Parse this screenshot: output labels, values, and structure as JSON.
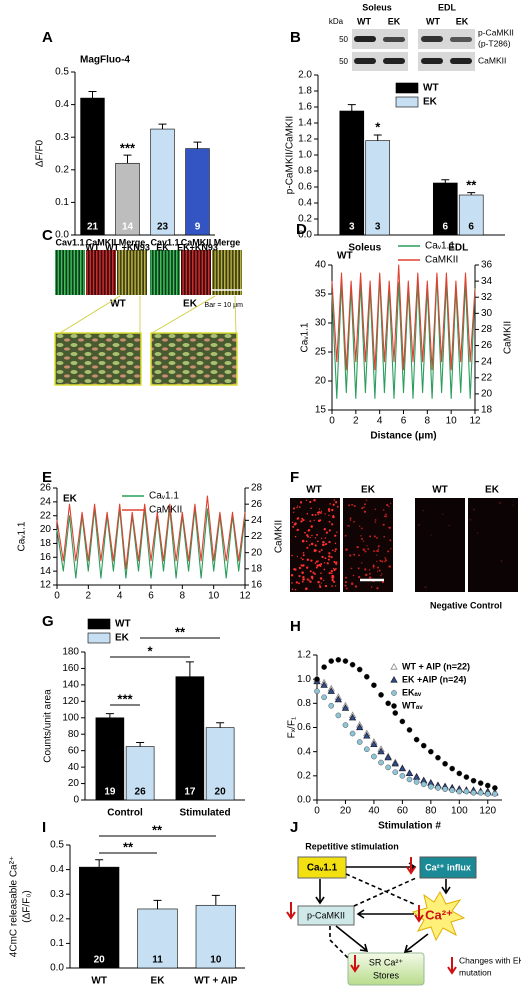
{
  "chart_data": [
    {
      "type": "bar",
      "panel": "A",
      "title": "MagFluo-4",
      "ylabel": "ΔF/F0",
      "categories": [
        "WT",
        "WT +KN93",
        "EK",
        "EK+KN93"
      ],
      "values": [
        0.42,
        0.22,
        0.325,
        0.265
      ],
      "errors": [
        0.02,
        0.025,
        0.015,
        0.02
      ],
      "n": [
        21,
        14,
        23,
        9
      ],
      "colors": [
        "#000000",
        "#bdbdbd",
        "#c6dff2",
        "#3355c4"
      ],
      "ylim": [
        0,
        0.5
      ],
      "yticks": [
        {
          "value": 0,
          "label": "0.0"
        },
        0.1,
        0.2,
        0.3,
        0.4,
        0.5
      ],
      "annotations": [
        "***"
      ]
    },
    {
      "type": "bar",
      "panel": "B",
      "ylabel": "p-CaMKII/CaMKII",
      "categories": [
        "Soleus",
        "EDL"
      ],
      "series": [
        {
          "name": "WT",
          "color": "#000000",
          "values": [
            1.55,
            0.65
          ],
          "errors": [
            0.08,
            0.04
          ],
          "n": [
            3,
            6
          ]
        },
        {
          "name": "EK",
          "color": "#c6dff2",
          "values": [
            1.18,
            0.5
          ],
          "errors": [
            0.07,
            0.03
          ],
          "n": [
            3,
            6
          ]
        }
      ],
      "ylim": [
        0,
        2
      ],
      "yticks": [
        {
          "value": 0,
          "label": "0.0"
        },
        0.2,
        0.4,
        0.6,
        0.8,
        {
          "value": 1,
          "label": "1.0"
        },
        1.2,
        1.4,
        1.6,
        1.8,
        {
          "value": 2,
          "label": "2.0"
        }
      ],
      "annotations": [
        "*",
        "**"
      ]
    },
    {
      "type": "line",
      "panel": "D",
      "label": "WT",
      "xlabel": "Distance (μm)",
      "ylabel": "Caᵥ1.1",
      "y2label": "CaMKII",
      "x": [
        0,
        0.4,
        0.8,
        1.2,
        1.6,
        2,
        2.4,
        2.8,
        3.2,
        3.6,
        4,
        4.4,
        4.8,
        5.2,
        5.6,
        6,
        6.4,
        6.8,
        7.2,
        7.6,
        8,
        8.4,
        8.8,
        9.2,
        9.6,
        10,
        10.4,
        10.8,
        11.2,
        11.6,
        12
      ],
      "series": [
        {
          "name": "Caᵥ1.1",
          "color": "#2a9d5c",
          "values": [
            35,
            17,
            37,
            18,
            36,
            17,
            37,
            18,
            36,
            17,
            38,
            18,
            36,
            17,
            37,
            18,
            36,
            17,
            37,
            18,
            36,
            17,
            38,
            18,
            37,
            17,
            36,
            18,
            37,
            17,
            36
          ]
        },
        {
          "name": "CaMKII",
          "color": "#e04030",
          "axis": "y2",
          "values": [
            34,
            24,
            35,
            23,
            34,
            24,
            35,
            24,
            34,
            23,
            35,
            24,
            34,
            24,
            36,
            23,
            34,
            24,
            35,
            24,
            34,
            23,
            35,
            24,
            35,
            23,
            34,
            24,
            35,
            24,
            33
          ]
        }
      ],
      "xlim": [
        0,
        12
      ],
      "xticks": [
        0,
        2,
        4,
        6,
        8,
        10,
        12
      ],
      "ylim": [
        15,
        40
      ],
      "yticks": [
        15,
        20,
        25,
        30,
        35,
        40
      ],
      "y2lim": [
        18,
        36
      ],
      "y2ticks": [
        18,
        20,
        22,
        24,
        26,
        28,
        30,
        32,
        34,
        36
      ]
    },
    {
      "type": "line",
      "panel": "E",
      "label": "EK",
      "ylabel": "Caᵥ1.1",
      "y2label": "CaMKII",
      "x": [
        0,
        0.4,
        0.8,
        1.2,
        1.6,
        2,
        2.4,
        2.8,
        3.2,
        3.6,
        4,
        4.4,
        4.8,
        5.2,
        5.6,
        6,
        6.4,
        6.8,
        7.2,
        7.6,
        8,
        8.4,
        8.8,
        9.2,
        9.6,
        10,
        10.4,
        10.8,
        11.2,
        11.6,
        12
      ],
      "series": [
        {
          "name": "Caᵥ1.1",
          "color": "#2a9d5c",
          "values": [
            20,
            14,
            22,
            13,
            22,
            14,
            23,
            13,
            22,
            14,
            23,
            13,
            22,
            14,
            23,
            13,
            22,
            14,
            23,
            13,
            22,
            14,
            23,
            13,
            23,
            14,
            22,
            13,
            22,
            14,
            22
          ]
        },
        {
          "name": "CaMKII",
          "color": "#e04030",
          "axis": "y2",
          "values": [
            24,
            19,
            26,
            19,
            25,
            19,
            26,
            19,
            25,
            19,
            26,
            18,
            25,
            19,
            26,
            19,
            25,
            19,
            26,
            19,
            25,
            19,
            26,
            19,
            27,
            19,
            25,
            19,
            25,
            19,
            25
          ]
        }
      ],
      "xlim": [
        0,
        12
      ],
      "xticks": [
        0,
        2,
        4,
        6,
        8,
        10,
        12
      ],
      "ylim": [
        12,
        26
      ],
      "yticks": [
        12,
        14,
        16,
        18,
        20,
        22,
        24,
        26
      ],
      "y2lim": [
        16,
        28
      ],
      "y2ticks": [
        16,
        18,
        20,
        22,
        24,
        26,
        28
      ]
    },
    {
      "type": "bar",
      "panel": "G",
      "ylabel": "Counts/unit area",
      "categories": [
        "Control",
        "Stimulated"
      ],
      "series": [
        {
          "name": "WT",
          "color": "#000000",
          "values": [
            100,
            150
          ],
          "errors": [
            5,
            18
          ],
          "n": [
            19,
            17
          ]
        },
        {
          "name": "EK",
          "color": "#c6dff2",
          "values": [
            65,
            88
          ],
          "errors": [
            5,
            6
          ],
          "n": [
            26,
            20
          ]
        }
      ],
      "ylim": [
        0,
        180
      ],
      "yticks": [
        0,
        20,
        40,
        60,
        80,
        100,
        120,
        140,
        160,
        180
      ],
      "annotations": [
        "***",
        "*",
        "**"
      ]
    },
    {
      "type": "scatter",
      "panel": "H",
      "xlabel": "Stimulation #",
      "ylabel": "Fₓ/F₁",
      "legend": "top-right",
      "x": [
        0,
        5,
        10,
        15,
        20,
        25,
        30,
        35,
        40,
        45,
        50,
        55,
        60,
        65,
        70,
        75,
        80,
        85,
        90,
        95,
        100,
        105,
        110,
        115,
        120,
        125
      ],
      "series": [
        {
          "name": "WT + AIP (n=22)",
          "color": "#888888",
          "marker": "triangle-open",
          "values": [
            1.0,
            0.97,
            0.92,
            0.85,
            0.78,
            0.7,
            0.62,
            0.55,
            0.48,
            0.42,
            0.36,
            0.31,
            0.26,
            0.22,
            0.19,
            0.16,
            0.14,
            0.12,
            0.11,
            0.1,
            0.09,
            0.08,
            0.07,
            0.07,
            0.06,
            0.06
          ]
        },
        {
          "name": "EK +AIP (n=24)",
          "color": "#2e4f8f",
          "marker": "triangle",
          "values": [
            0.98,
            0.95,
            0.9,
            0.83,
            0.76,
            0.68,
            0.6,
            0.53,
            0.46,
            0.4,
            0.35,
            0.3,
            0.26,
            0.22,
            0.19,
            0.16,
            0.14,
            0.12,
            0.11,
            0.1,
            0.09,
            0.08,
            0.08,
            0.07,
            0.07,
            0.06
          ]
        },
        {
          "name": "EKₐᵥ",
          "color": "#8fc3d6",
          "marker": "circle",
          "values": [
            0.9,
            0.85,
            0.78,
            0.7,
            0.62,
            0.55,
            0.48,
            0.42,
            0.36,
            0.31,
            0.27,
            0.23,
            0.2,
            0.17,
            0.15,
            0.13,
            0.11,
            0.1,
            0.09,
            0.08,
            0.07,
            0.07,
            0.06,
            0.06,
            0.05,
            0.05
          ]
        },
        {
          "name": "WTₐᵥ",
          "color": "#000000",
          "marker": "circle",
          "values": [
            1.0,
            1.1,
            1.15,
            1.16,
            1.15,
            1.12,
            1.08,
            1.02,
            0.95,
            0.87,
            0.8,
            0.72,
            0.65,
            0.58,
            0.5,
            0.45,
            0.4,
            0.35,
            0.3,
            0.26,
            0.22,
            0.19,
            0.16,
            0.14,
            0.12,
            0.1
          ]
        }
      ],
      "xlim": [
        0,
        130
      ],
      "xticks": [
        0,
        20,
        40,
        60,
        80,
        100,
        120
      ],
      "ylim": [
        0,
        1.2
      ],
      "yticks": [
        {
          "value": 0,
          "label": "0.0"
        },
        0.2,
        0.4,
        0.6,
        0.8,
        {
          "value": 1,
          "label": "1.0"
        },
        1.2
      ]
    },
    {
      "type": "bar",
      "panel": "I",
      "ylabel": [
        "4CmC releasable Ca²⁺",
        "(ΔF/F₀)"
      ],
      "categories": [
        "WT",
        "EK",
        "WT + AIP"
      ],
      "values": [
        0.41,
        0.24,
        0.255
      ],
      "errors": [
        0.03,
        0.035,
        0.04
      ],
      "n": [
        20,
        11,
        10
      ],
      "colors": [
        "#000000",
        "#c6dff2",
        "#c6dff2"
      ],
      "ylim": [
        0,
        0.5
      ],
      "yticks": [
        {
          "value": 0,
          "label": "0.0"
        },
        0.1,
        0.2,
        0.3,
        0.4,
        0.5
      ],
      "annotations": [
        "**",
        "**"
      ]
    }
  ],
  "blot": {
    "muscles": [
      "Soleus",
      "EDL"
    ],
    "unit": "kDa",
    "lanes": [
      "WT",
      "EK",
      "WT",
      "EK"
    ],
    "markers": [
      50,
      50
    ],
    "bands": [
      "p-CaMKII",
      "(p-T286)",
      "CaMKII"
    ]
  },
  "micrograph_c": {
    "panel": "C",
    "channels": [
      "Cav1.1",
      "CaMKII",
      "Merge",
      "Cav1.1",
      "CaMKII",
      "Merge"
    ],
    "genotypes": [
      "WT",
      "EK"
    ],
    "scale_bar": "Bar = 10 μm"
  },
  "micrograph_f": {
    "panel": "F",
    "columns": [
      "WT",
      "EK",
      "WT",
      "EK"
    ],
    "caption": "Negative Control"
  },
  "diagram": {
    "panel": "J",
    "title": "Repetitive stimulation",
    "nodes": [
      "Caᵥ1.1",
      "Ca²⁺ influx",
      "p-CaMKII",
      "Ca²⁺",
      [
        "SR Ca²⁺",
        "Stores"
      ]
    ],
    "legend": [
      "Changes with EK",
      "mutation"
    ]
  }
}
